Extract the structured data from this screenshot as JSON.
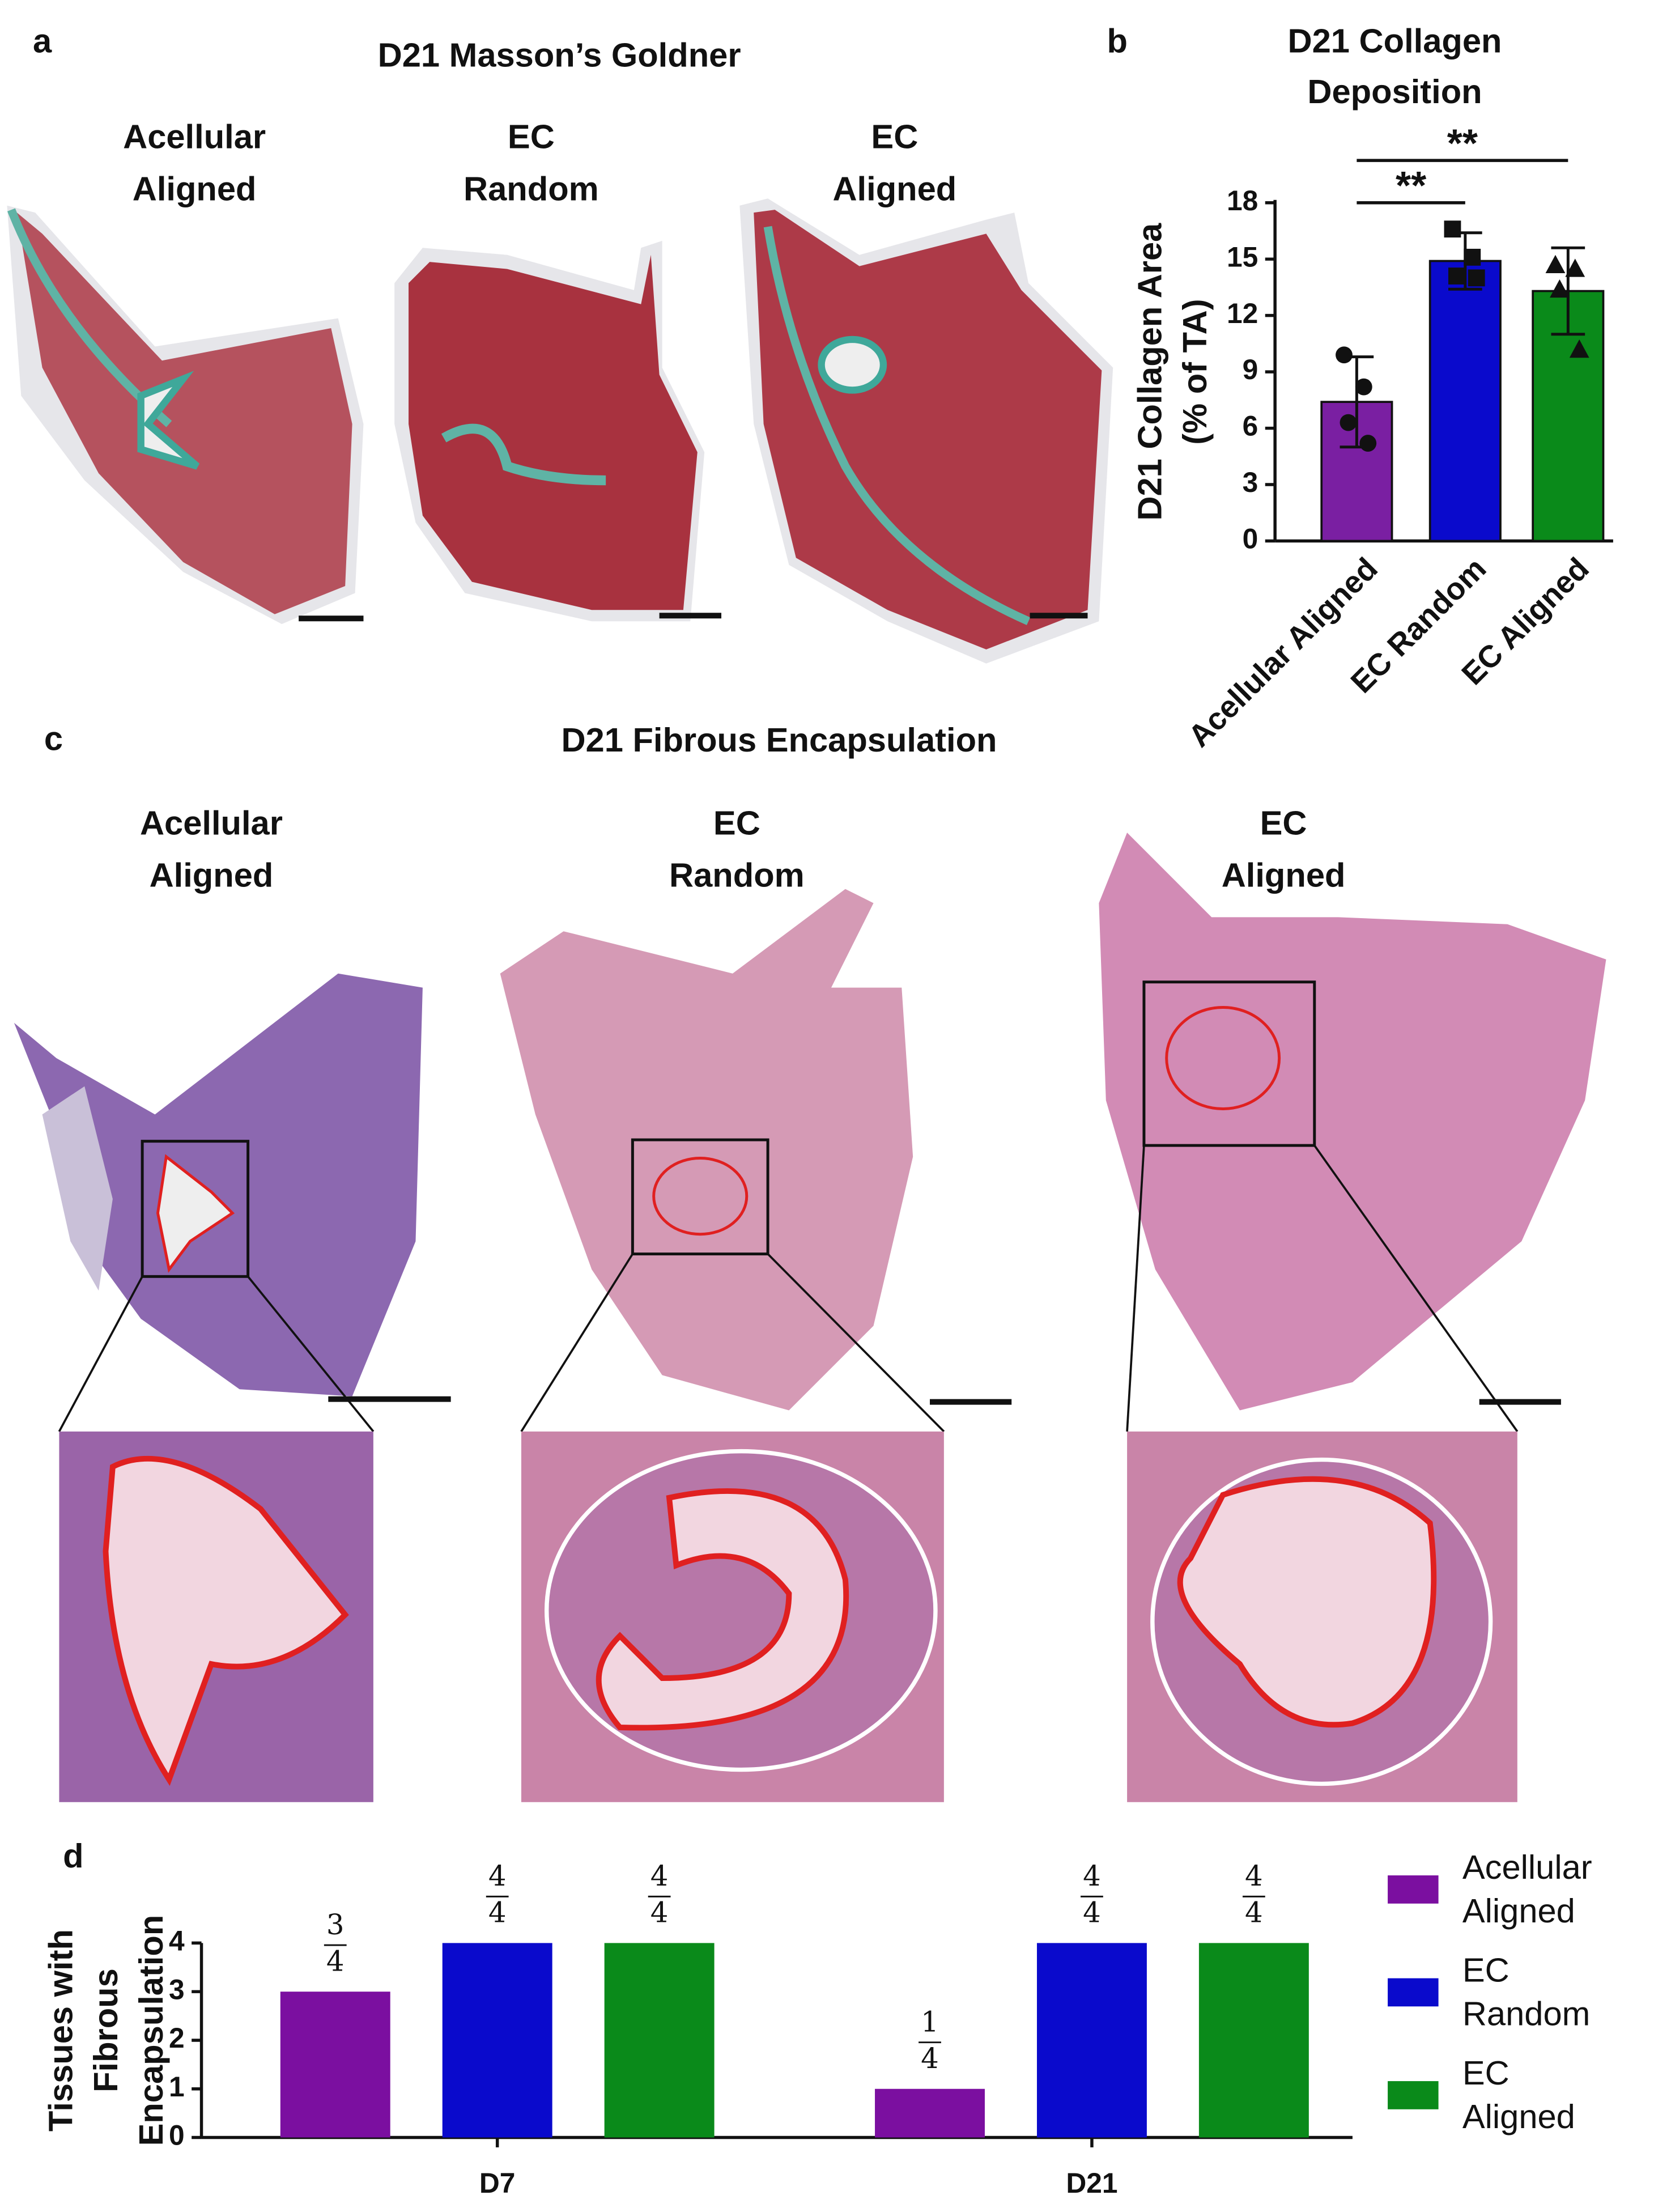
{
  "panel_labels": [
    "a",
    "b",
    "c",
    "d"
  ],
  "panel_a": {
    "title": "D21 Masson’s Goldner",
    "images": [
      [
        "Acellular",
        "Aligned"
      ],
      [
        "EC",
        "Random"
      ],
      [
        "EC",
        "Aligned"
      ]
    ]
  },
  "panel_c": {
    "title": "D21 Fibrous Encapsulation",
    "images": [
      [
        "Acellular",
        "Aligned"
      ],
      [
        "EC",
        "Random"
      ],
      [
        "EC",
        "Aligned"
      ]
    ]
  },
  "chart_data": [
    {
      "type": "bar",
      "title": [
        "D21 Collagen",
        "Deposition"
      ],
      "ylabel": [
        "D21 Collagen Area",
        "(% of TA)"
      ],
      "categories": [
        "Acellular Aligned",
        "EC Random",
        "EC Aligned"
      ],
      "values": [
        7.4,
        14.9,
        13.3
      ],
      "errors": [
        2.4,
        1.5,
        2.3
      ],
      "colors": [
        "#7a1fa2",
        "#0a0acc",
        "#0a8a1a"
      ],
      "points": [
        [
          9.9,
          8.2,
          6.3,
          5.2
        ],
        [
          16.6,
          15.1,
          14.1,
          14.0
        ],
        [
          14.7,
          14.5,
          13.4,
          10.2
        ]
      ],
      "markers": [
        "circle",
        "square",
        "triangle"
      ],
      "significance": [
        {
          "pair": [
            0,
            1
          ],
          "label": "**"
        },
        {
          "pair": [
            0,
            2
          ],
          "label": "**"
        }
      ],
      "ylim": [
        0,
        18
      ],
      "yticks": [
        0,
        3,
        6,
        9,
        12,
        15,
        18
      ]
    },
    {
      "type": "grouped_bar",
      "ylabel": [
        "Tissues with",
        "Fibrous",
        "Encapsulation"
      ],
      "categories": [
        "D7",
        "D21"
      ],
      "series": [
        {
          "name": "Acellular Aligned",
          "color": "#7b0fa0",
          "values": [
            3,
            1
          ],
          "value_labels": [
            "3/4",
            "1/4"
          ]
        },
        {
          "name": "EC Random",
          "color": "#0a0acc",
          "values": [
            4,
            4
          ],
          "value_labels": [
            "4/4",
            "4/4"
          ]
        },
        {
          "name": "EC Aligned",
          "color": "#0a8a1a",
          "values": [
            4,
            4
          ],
          "value_labels": [
            "4/4",
            "4/4"
          ]
        }
      ],
      "ylim": [
        0,
        4
      ],
      "yticks": [
        0,
        1,
        2,
        3,
        4
      ],
      "legend": "right"
    }
  ]
}
